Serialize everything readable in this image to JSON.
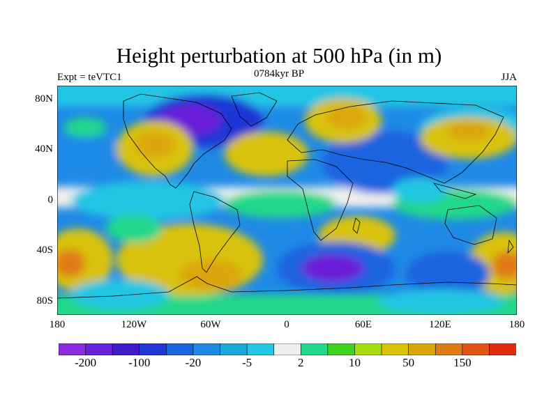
{
  "title": "Height perturbation at 500 hPa (in m)",
  "left_label": "Expt = teVTC1",
  "center_label": "0784kyr BP",
  "right_label": "JJA",
  "lat_ticks": [
    "80N",
    "40N",
    "0",
    "40S",
    "80S"
  ],
  "lon_ticks": [
    "180",
    "120W",
    "60W",
    "0",
    "60E",
    "120E",
    "180"
  ],
  "colorbar": {
    "colors": [
      "#8b2be2",
      "#6a1fd8",
      "#3f1cc7",
      "#1f35d6",
      "#1a64e0",
      "#1f8ae6",
      "#1aa7dc",
      "#20c6e4",
      "#eeeeee",
      "#22d88a",
      "#3fd21f",
      "#a6dc12",
      "#d8c20a",
      "#dba510",
      "#e07a14",
      "#e25412",
      "#e22b0c"
    ],
    "labels": [
      "-200",
      "-100",
      "-20",
      "-5",
      "2",
      "10",
      "50",
      "150"
    ]
  },
  "field_colors": {
    "deep_low": "#6a1fd8",
    "low": "#1f35d6",
    "mid_low": "#1a64e0",
    "light_low": "#1f8ae6",
    "cyan": "#20c6e4",
    "neutral": "#eeeeee",
    "green": "#22d88a",
    "yellow_green": "#a6dc12",
    "yellow": "#d8c20a",
    "orange": "#dba510",
    "deep_orange": "#e07a14"
  }
}
